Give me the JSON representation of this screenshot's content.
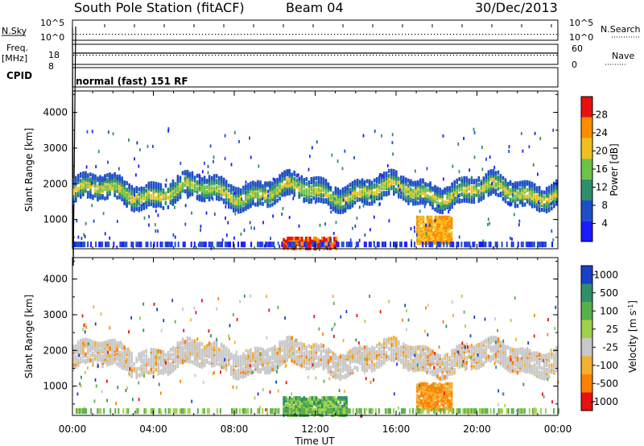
{
  "header": {
    "station": "South Pole Station (fitACF)",
    "beam": "Beam 04",
    "date": "30/Dec/2013"
  },
  "noise_panel": {
    "left_label": "N.Sky",
    "left_ticks": [
      "10^5",
      "10^0"
    ],
    "right_ticks": [
      "10^5",
      "10^0"
    ],
    "right_label": "N.Search"
  },
  "freq_panel": {
    "left_label_1": "Freq.",
    "left_label_2": "[MHz]",
    "left_ticks": [
      "18",
      "8"
    ],
    "right_ticks": [
      "60",
      "0"
    ],
    "right_label": "Nave"
  },
  "cpid_panel": {
    "label": "CPID",
    "program": "normal (fast) 151 RF"
  },
  "x_axis": {
    "ticks": [
      "00:00",
      "04:00",
      "08:00",
      "12:00",
      "16:00",
      "20:00",
      "00:00"
    ],
    "label": "Time UT"
  },
  "y_axis_ticks": [
    "1000",
    "2000",
    "3000",
    "4000"
  ],
  "chart_data": [
    {
      "type": "heatmap",
      "ylabel": "Slant Range [km]",
      "xlim_hours": [
        0,
        24
      ],
      "ylim": [
        180,
        4600
      ],
      "colorbar": {
        "label": "Power [dB]",
        "ticks": [
          "4",
          "8",
          "12",
          "16",
          "20",
          "24",
          "28"
        ],
        "range": [
          0,
          30
        ],
        "colors": [
          "#1a1aff",
          "#1f4fc8",
          "#2f8f6a",
          "#6cc24a",
          "#f0c020",
          "#ff8c00",
          "#e81010"
        ]
      },
      "features": [
        {
          "desc": "main echo band",
          "time_range": [
            0,
            24
          ],
          "range_km": [
            1500,
            2200
          ],
          "level": 10
        },
        {
          "desc": "near-range scatter",
          "time_range": [
            10.4,
            13.0
          ],
          "range_km": [
            200,
            500
          ],
          "level": 28
        },
        {
          "desc": "near-range patch",
          "time_range": [
            17.0,
            18.8
          ],
          "range_km": [
            350,
            1100
          ],
          "level": 20
        }
      ]
    },
    {
      "type": "heatmap",
      "ylabel": "Slant Range [km]",
      "xlim_hours": [
        0,
        24
      ],
      "ylim": [
        180,
        4600
      ],
      "colorbar": {
        "label": "Velocity [m s^-1]",
        "ticks": [
          "1000",
          "500",
          "100",
          "25",
          "-25",
          "-100",
          "-500",
          "-1000"
        ],
        "range": [
          -1000,
          1000
        ],
        "colors": [
          "#1a3fc8",
          "#2f8f6a",
          "#58b04a",
          "#9ed24a",
          "#c8c8c8",
          "#f4b030",
          "#ff8000",
          "#e81010"
        ]
      },
      "features": [
        {
          "desc": "main echo band (near-zero velocity, grey)",
          "time_range": [
            0,
            24
          ],
          "range_km": [
            1500,
            2200
          ],
          "velocity": 0
        },
        {
          "desc": "near-range positive velocities",
          "time_range": [
            10.4,
            13.5
          ],
          "range_km": [
            200,
            700
          ],
          "velocity": 200
        },
        {
          "desc": "near-range negative velocities",
          "time_range": [
            17.0,
            18.8
          ],
          "range_km": [
            350,
            1100
          ],
          "velocity": -300
        }
      ]
    }
  ]
}
